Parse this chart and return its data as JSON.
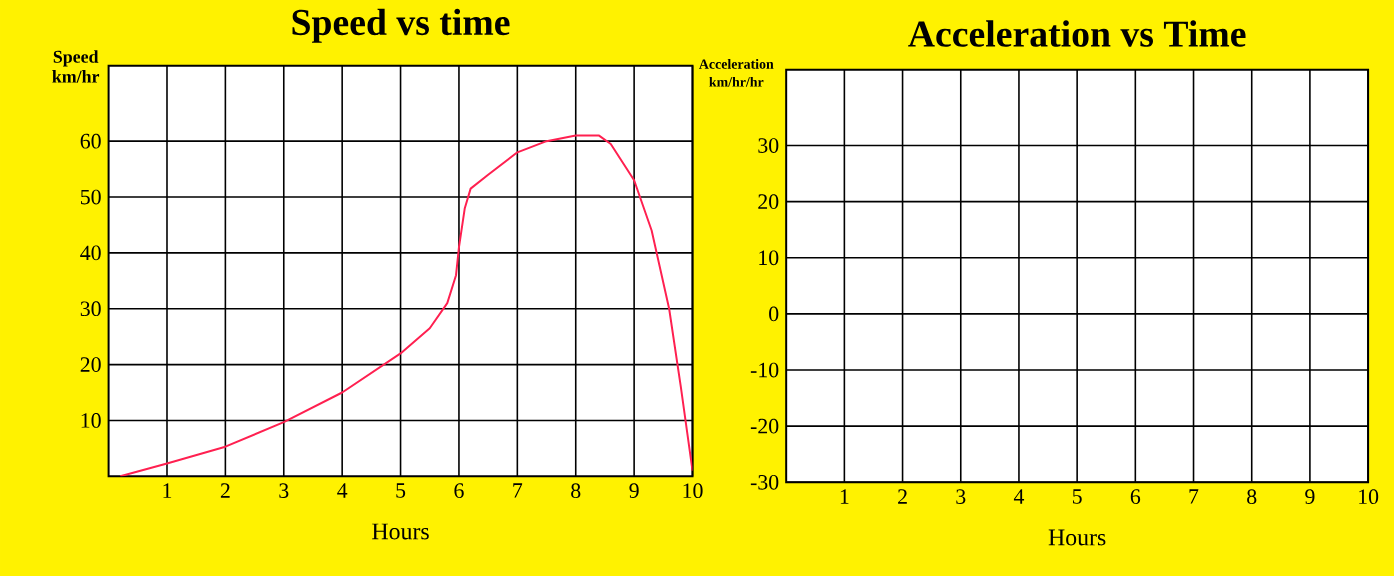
{
  "chart_data": [
    {
      "type": "line",
      "title": "Speed vs time",
      "xlabel": "Hours",
      "ylabel": "Speed km/hr",
      "xlim": [
        0,
        10
      ],
      "ylim": [
        0,
        73.5
      ],
      "xticks": [
        1,
        2,
        3,
        4,
        5,
        6,
        7,
        8,
        9,
        10
      ],
      "yticks": [
        10,
        20,
        30,
        40,
        50,
        60
      ],
      "grid": true,
      "marker": "none",
      "line_style": "solid",
      "series": [
        {
          "color": "#ff2050",
          "x": [
            0.2,
            1,
            2,
            3,
            4,
            5,
            5.5,
            5.8,
            5.95,
            6,
            6.1,
            6.2,
            6.5,
            7,
            7.5,
            8,
            8.4,
            8.6,
            9,
            9.3,
            9.6,
            9.8,
            10
          ],
          "values": [
            0,
            2.3,
            5.3,
            9.7,
            15,
            22,
            26.5,
            31,
            36,
            41,
            48,
            51.5,
            54,
            58,
            60,
            61,
            61,
            59.5,
            53,
            44,
            30,
            16,
            1
          ]
        }
      ]
    },
    {
      "type": "line",
      "title": "Acceleration vs Time",
      "xlabel": "Hours",
      "ylabel": "Acceleration km/hr/hr",
      "xlim": [
        0,
        10
      ],
      "ylim": [
        -30,
        43.5
      ],
      "xticks": [
        1,
        2,
        3,
        4,
        5,
        6,
        7,
        8,
        9,
        10
      ],
      "yticks": [
        -30,
        -20,
        -10,
        0,
        10,
        20,
        30
      ],
      "grid": true
    }
  ]
}
